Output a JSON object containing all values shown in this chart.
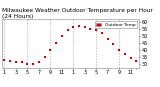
{
  "title": "Milwaukee Weather Outdoor Temperature per Hour (24 Hours)",
  "background_color": "#ffffff",
  "plot_bg_color": "#ffffff",
  "grid_color": "#aaaaaa",
  "dot_color": "#cc0000",
  "dot_size": 1.8,
  "hours": [
    1,
    2,
    3,
    4,
    5,
    6,
    7,
    8,
    9,
    10,
    11,
    12,
    13,
    14,
    15,
    16,
    17,
    18,
    19,
    20,
    21,
    22,
    23,
    24
  ],
  "temps": [
    33,
    32,
    31,
    31,
    30,
    30,
    31,
    35,
    40,
    45,
    50,
    54,
    56,
    57,
    56,
    55,
    54,
    52,
    48,
    44,
    40,
    37,
    34,
    32
  ],
  "ylim": [
    27,
    62
  ],
  "yticks": [
    30,
    35,
    40,
    45,
    50,
    55,
    60
  ],
  "ytick_labels": [
    "30",
    "35",
    "40",
    "45",
    "50",
    "55",
    "60"
  ],
  "xtick_positions": [
    1,
    3,
    5,
    7,
    9,
    11,
    13,
    15,
    17,
    19,
    21,
    23,
    24
  ],
  "xtick_labels": [
    "1",
    "3",
    "5",
    "7",
    "9",
    "11",
    "1",
    "3",
    "5",
    "7",
    "9",
    "11",
    ""
  ],
  "vgrid_positions": [
    1,
    5,
    9,
    13,
    17,
    21,
    25
  ],
  "title_fontsize": 4.2,
  "tick_fontsize": 3.5,
  "legend_color": "#dd0000",
  "legend_label": "Outdoor Temp"
}
